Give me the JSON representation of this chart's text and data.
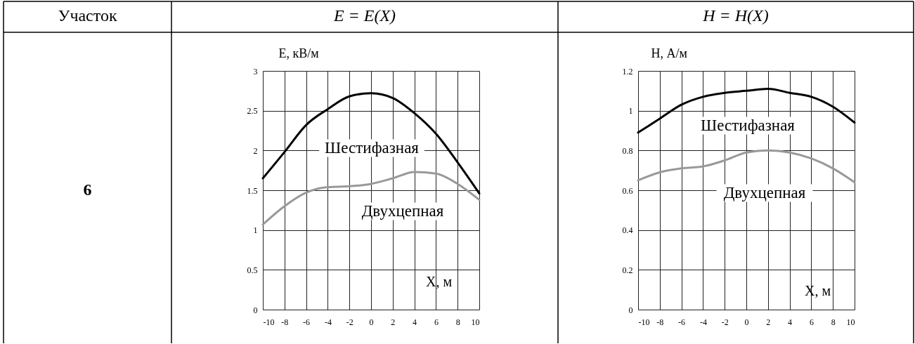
{
  "chart_data": [
    {
      "type": "other",
      "title": "Участок",
      "annotations": [
        "6"
      ]
    },
    {
      "type": "line",
      "title": "E = E(X)",
      "xlabel": "X, м",
      "ylabel": "E, кВ/м",
      "x": [
        -10,
        -8,
        -6,
        -4,
        -2,
        0,
        2,
        4,
        6,
        8,
        10
      ],
      "series": [
        {
          "name": "Шестифазная",
          "color": "#000000",
          "values": [
            1.65,
            1.98,
            2.32,
            2.52,
            2.68,
            2.72,
            2.66,
            2.47,
            2.21,
            1.85,
            1.46
          ]
        },
        {
          "name": "Двухцепная",
          "color": "#999999",
          "values": [
            1.07,
            1.3,
            1.47,
            1.54,
            1.55,
            1.58,
            1.65,
            1.73,
            1.71,
            1.58,
            1.38
          ]
        }
      ],
      "xlim": [
        -10,
        10
      ],
      "ylim": [
        0,
        3
      ],
      "xticks": [
        -10,
        -8,
        -6,
        -4,
        -2,
        0,
        2,
        4,
        6,
        8,
        10
      ],
      "yticks": [
        0,
        0.5,
        1,
        1.5,
        2,
        2.5,
        3
      ],
      "grid": true
    },
    {
      "type": "line",
      "title": "H = H(X)",
      "xlabel": "X, м",
      "ylabel": "H, А/м",
      "x": [
        -10,
        -8,
        -6,
        -4,
        -2,
        0,
        2,
        4,
        6,
        8,
        10
      ],
      "series": [
        {
          "name": "Шестифазная",
          "color": "#000000",
          "values": [
            0.89,
            0.96,
            1.03,
            1.07,
            1.09,
            1.1,
            1.11,
            1.09,
            1.07,
            1.02,
            0.94
          ]
        },
        {
          "name": "Двухцепная",
          "color": "#999999",
          "values": [
            0.65,
            0.69,
            0.71,
            0.72,
            0.75,
            0.79,
            0.8,
            0.79,
            0.76,
            0.71,
            0.64
          ]
        }
      ],
      "xlim": [
        -10,
        10
      ],
      "ylim": [
        0,
        1.2
      ],
      "xticks": [
        -10,
        -8,
        -6,
        -4,
        -2,
        0,
        2,
        4,
        6,
        8,
        10
      ],
      "yticks": [
        0,
        0.2,
        0.4,
        0.6,
        0.8,
        1,
        1.2
      ],
      "grid": true
    }
  ]
}
